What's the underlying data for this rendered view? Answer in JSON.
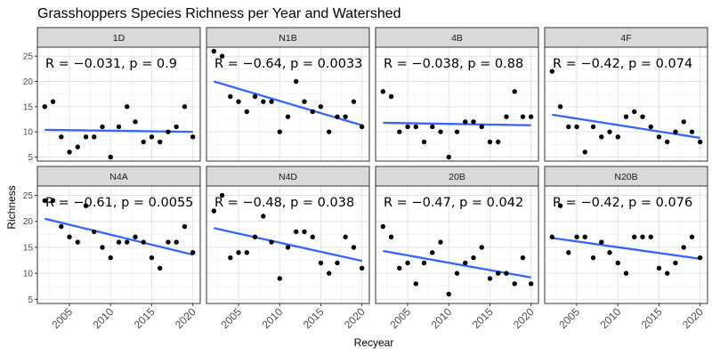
{
  "chart_data": {
    "type": "scatter",
    "title": "Grasshoppers Species Richness per Year and Watershed",
    "xlabel": "Recyear",
    "ylabel": "Richness",
    "xlim": [
      2001.1,
      2020.9
    ],
    "ylim": [
      4.2,
      26.8
    ],
    "x_ticks": [
      2005,
      2010,
      2015,
      2020
    ],
    "y_ticks": [
      5,
      10,
      15,
      20,
      25
    ],
    "x_tick_labels": [
      "2005",
      "2010",
      "2015",
      "2020"
    ],
    "y_tick_labels": [
      "5",
      "10",
      "15",
      "20",
      "25"
    ],
    "grid": true,
    "point_color": "#000000",
    "line_color": "#3366ff",
    "strip_color": "#d9d9d9",
    "panels": [
      {
        "name": "1D",
        "stat_label": "R = −0.031, p = 0.9",
        "fit": [
          [
            2002,
            10.4
          ],
          [
            2020,
            10.0
          ]
        ],
        "points": [
          [
            2002,
            15
          ],
          [
            2003,
            16
          ],
          [
            2004,
            9
          ],
          [
            2005,
            6
          ],
          [
            2006,
            7
          ],
          [
            2007,
            9
          ],
          [
            2008,
            9
          ],
          [
            2009,
            11
          ],
          [
            2010,
            5
          ],
          [
            2011,
            11
          ],
          [
            2012,
            15
          ],
          [
            2013,
            12
          ],
          [
            2014,
            8
          ],
          [
            2015,
            9
          ],
          [
            2016,
            8
          ],
          [
            2017,
            10
          ],
          [
            2018,
            11
          ],
          [
            2019,
            15
          ],
          [
            2020,
            9
          ]
        ]
      },
      {
        "name": "N1B",
        "stat_label": "R = −0.64, p = 0.0033",
        "fit": [
          [
            2002,
            20.0
          ],
          [
            2020,
            11.3
          ]
        ],
        "points": [
          [
            2002,
            26
          ],
          [
            2003,
            25
          ],
          [
            2004,
            17
          ],
          [
            2005,
            16
          ],
          [
            2006,
            14
          ],
          [
            2007,
            17
          ],
          [
            2008,
            16
          ],
          [
            2009,
            16
          ],
          [
            2010,
            10
          ],
          [
            2011,
            13
          ],
          [
            2012,
            20
          ],
          [
            2013,
            16
          ],
          [
            2014,
            14
          ],
          [
            2015,
            15
          ],
          [
            2016,
            10
          ],
          [
            2017,
            13
          ],
          [
            2018,
            13
          ],
          [
            2019,
            16
          ],
          [
            2020,
            11
          ]
        ]
      },
      {
        "name": "4B",
        "stat_label": "R = −0.038, p = 0.88",
        "fit": [
          [
            2002,
            11.8
          ],
          [
            2020,
            11.3
          ]
        ],
        "points": [
          [
            2002,
            18
          ],
          [
            2003,
            17
          ],
          [
            2004,
            10
          ],
          [
            2005,
            11
          ],
          [
            2006,
            11
          ],
          [
            2007,
            8
          ],
          [
            2008,
            11
          ],
          [
            2009,
            10
          ],
          [
            2010,
            5
          ],
          [
            2011,
            10
          ],
          [
            2012,
            12
          ],
          [
            2013,
            12
          ],
          [
            2014,
            11
          ],
          [
            2015,
            8
          ],
          [
            2016,
            8
          ],
          [
            2017,
            13
          ],
          [
            2018,
            18
          ],
          [
            2019,
            13
          ],
          [
            2020,
            13
          ]
        ]
      },
      {
        "name": "4F",
        "stat_label": "R = −0.42, p = 0.074",
        "fit": [
          [
            2002,
            13.4
          ],
          [
            2020,
            8.8
          ]
        ],
        "points": [
          [
            2002,
            22
          ],
          [
            2003,
            15
          ],
          [
            2004,
            11
          ],
          [
            2005,
            11
          ],
          [
            2006,
            6
          ],
          [
            2007,
            11
          ],
          [
            2008,
            9
          ],
          [
            2009,
            10
          ],
          [
            2010,
            9
          ],
          [
            2011,
            13
          ],
          [
            2012,
            14
          ],
          [
            2013,
            13
          ],
          [
            2014,
            11
          ],
          [
            2015,
            9
          ],
          [
            2016,
            8
          ],
          [
            2017,
            10
          ],
          [
            2018,
            12
          ],
          [
            2019,
            10
          ],
          [
            2020,
            8
          ]
        ]
      },
      {
        "name": "N4A",
        "stat_label": "R = −0.61, p = 0.0055",
        "fit": [
          [
            2002,
            20.5
          ],
          [
            2020,
            13.6
          ]
        ],
        "points": [
          [
            2002,
            24
          ],
          [
            2003,
            24
          ],
          [
            2004,
            19
          ],
          [
            2005,
            17
          ],
          [
            2006,
            16
          ],
          [
            2007,
            23
          ],
          [
            2008,
            18
          ],
          [
            2009,
            15
          ],
          [
            2010,
            13
          ],
          [
            2011,
            16
          ],
          [
            2012,
            16
          ],
          [
            2013,
            17
          ],
          [
            2014,
            16
          ],
          [
            2015,
            13
          ],
          [
            2016,
            11
          ],
          [
            2017,
            16
          ],
          [
            2018,
            16
          ],
          [
            2019,
            19
          ],
          [
            2020,
            14
          ]
        ]
      },
      {
        "name": "N4D",
        "stat_label": "R = −0.48, p = 0.038",
        "fit": [
          [
            2002,
            18.7
          ],
          [
            2020,
            12.4
          ]
        ],
        "points": [
          [
            2002,
            22
          ],
          [
            2003,
            25
          ],
          [
            2004,
            13
          ],
          [
            2005,
            14
          ],
          [
            2006,
            14
          ],
          [
            2007,
            17
          ],
          [
            2008,
            21
          ],
          [
            2009,
            16
          ],
          [
            2010,
            9
          ],
          [
            2011,
            15
          ],
          [
            2012,
            18
          ],
          [
            2013,
            18
          ],
          [
            2014,
            17
          ],
          [
            2015,
            12
          ],
          [
            2016,
            10
          ],
          [
            2017,
            12
          ],
          [
            2018,
            17
          ],
          [
            2019,
            15
          ],
          [
            2020,
            11
          ]
        ]
      },
      {
        "name": "20B",
        "stat_label": "R = −0.47, p = 0.042",
        "fit": [
          [
            2002,
            14.3
          ],
          [
            2020,
            9.2
          ]
        ],
        "points": [
          [
            2002,
            19
          ],
          [
            2003,
            17
          ],
          [
            2004,
            11
          ],
          [
            2005,
            12
          ],
          [
            2006,
            8
          ],
          [
            2007,
            12
          ],
          [
            2008,
            14
          ],
          [
            2009,
            16
          ],
          [
            2010,
            6
          ],
          [
            2011,
            10
          ],
          [
            2012,
            12
          ],
          [
            2013,
            13
          ],
          [
            2014,
            15
          ],
          [
            2015,
            9
          ],
          [
            2016,
            10
          ],
          [
            2017,
            10
          ],
          [
            2018,
            8
          ],
          [
            2019,
            13
          ],
          [
            2020,
            8
          ]
        ]
      },
      {
        "name": "N20B",
        "stat_label": "R = −0.42, p = 0.076",
        "fit": [
          [
            2002,
            16.8
          ],
          [
            2020,
            12.8
          ]
        ],
        "points": [
          [
            2002,
            17
          ],
          [
            2003,
            23
          ],
          [
            2004,
            14
          ],
          [
            2005,
            17
          ],
          [
            2006,
            17
          ],
          [
            2007,
            13
          ],
          [
            2008,
            16
          ],
          [
            2009,
            14
          ],
          [
            2010,
            12
          ],
          [
            2011,
            10
          ],
          [
            2012,
            17
          ],
          [
            2013,
            17
          ],
          [
            2014,
            17
          ],
          [
            2015,
            11
          ],
          [
            2016,
            10
          ],
          [
            2017,
            12
          ],
          [
            2018,
            15
          ],
          [
            2019,
            17
          ],
          [
            2020,
            13
          ]
        ]
      }
    ]
  }
}
